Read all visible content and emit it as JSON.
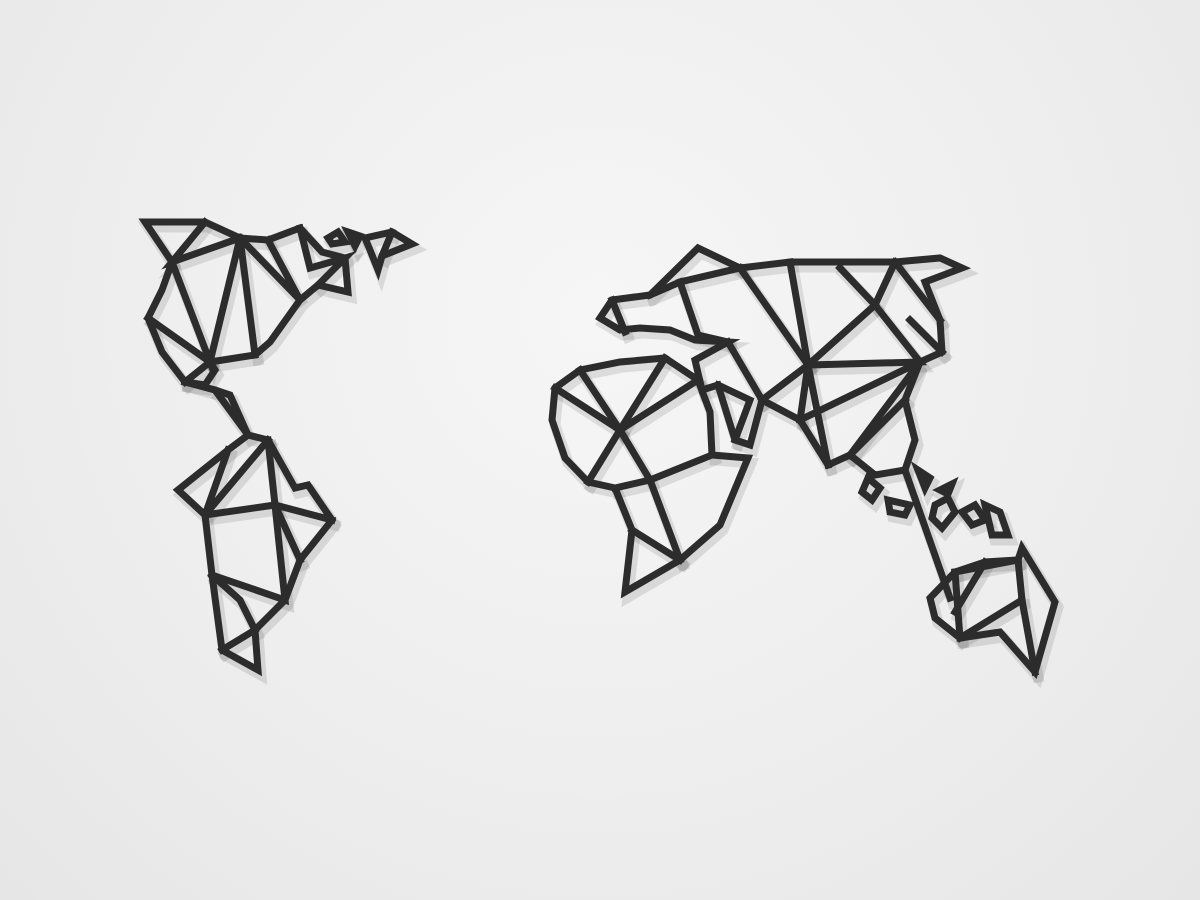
{
  "scene": {
    "subject": "geometric-world-map-wall-art",
    "colors": {
      "background": "#efefef",
      "wire": "#2c2c2c"
    }
  }
}
